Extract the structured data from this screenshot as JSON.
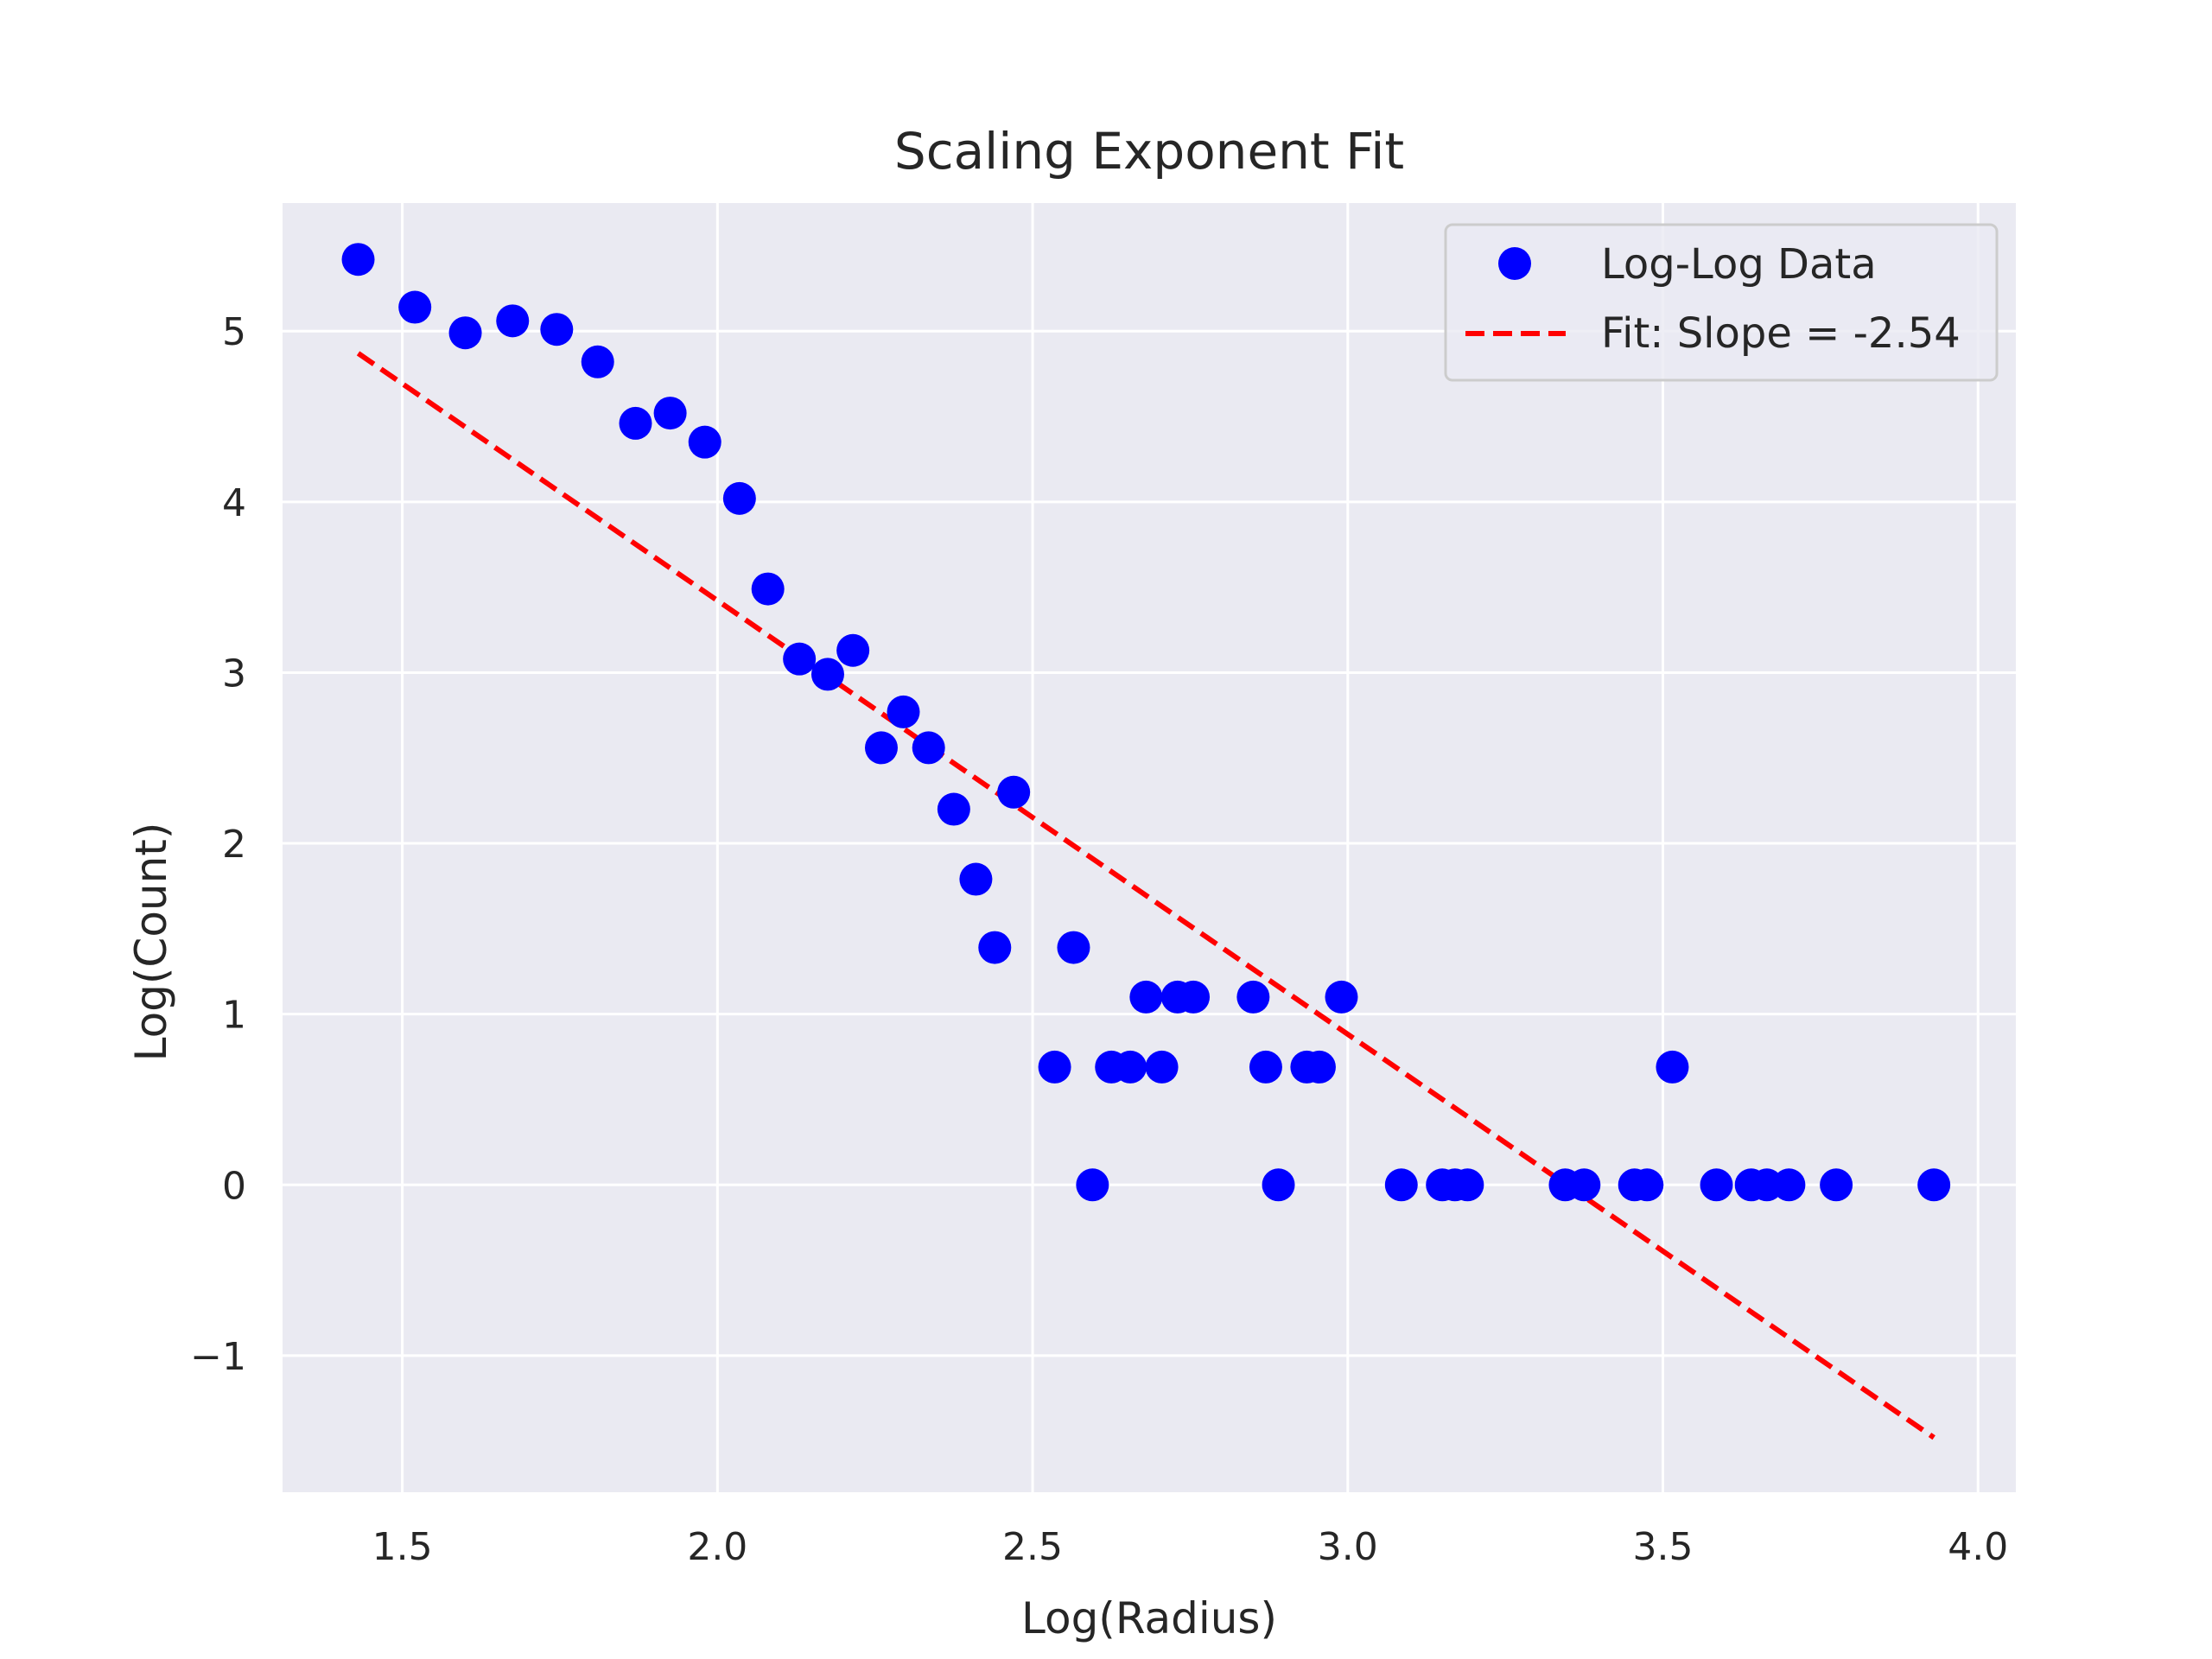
{
  "chart_data": {
    "type": "scatter",
    "title": "Scaling Exponent Fit",
    "xlabel": "Log(Radius)",
    "ylabel": "Log(Count)",
    "xlim": [
      1.31,
      4.06
    ],
    "ylim": [
      -1.8,
      5.75
    ],
    "xticks": [
      1.5,
      2.0,
      2.5,
      3.0,
      3.5,
      4.0
    ],
    "xtick_labels": [
      "1.5",
      "2.0",
      "2.5",
      "3.0",
      "3.5",
      "4.0"
    ],
    "yticks": [
      -1,
      0,
      1,
      2,
      3,
      4,
      5
    ],
    "ytick_labels": [
      "−1",
      "0",
      "1",
      "2",
      "3",
      "4",
      "5"
    ],
    "grid": true,
    "legend_position": "top-right",
    "colors": {
      "background": "#eaeaf2",
      "grid": "#ffffff",
      "points": "#0000ff",
      "fit_line": "#ff0000"
    },
    "series": [
      {
        "name": "Log-Log Data",
        "kind": "scatter",
        "color": "#0000ff",
        "points": [
          [
            1.43,
            5.42
          ],
          [
            1.52,
            5.14
          ],
          [
            1.6,
            4.99
          ],
          [
            1.675,
            5.06
          ],
          [
            1.745,
            5.01
          ],
          [
            1.81,
            4.82
          ],
          [
            1.87,
            4.46
          ],
          [
            1.925,
            4.52
          ],
          [
            1.98,
            4.35
          ],
          [
            2.035,
            4.02
          ],
          [
            2.08,
            3.49
          ],
          [
            2.13,
            3.08
          ],
          [
            2.175,
            2.99
          ],
          [
            2.215,
            3.13
          ],
          [
            2.26,
            2.56
          ],
          [
            2.295,
            2.77
          ],
          [
            2.335,
            2.56
          ],
          [
            2.375,
            2.2
          ],
          [
            2.41,
            1.79
          ],
          [
            2.44,
            1.39
          ],
          [
            2.47,
            2.3
          ],
          [
            2.535,
            0.69
          ],
          [
            2.565,
            1.39
          ],
          [
            2.595,
            0.0
          ],
          [
            2.625,
            0.69
          ],
          [
            2.655,
            0.69
          ],
          [
            2.68,
            1.1
          ],
          [
            2.705,
            0.69
          ],
          [
            2.73,
            1.1
          ],
          [
            2.755,
            1.1
          ],
          [
            2.85,
            1.1
          ],
          [
            2.87,
            0.69
          ],
          [
            2.89,
            0.0
          ],
          [
            2.935,
            0.69
          ],
          [
            2.955,
            0.69
          ],
          [
            2.99,
            1.1
          ],
          [
            3.085,
            0.0
          ],
          [
            3.15,
            0.0
          ],
          [
            3.17,
            0.0
          ],
          [
            3.19,
            0.0
          ],
          [
            3.345,
            0.0
          ],
          [
            3.375,
            0.0
          ],
          [
            3.455,
            0.0
          ],
          [
            3.475,
            0.0
          ],
          [
            3.515,
            0.69
          ],
          [
            3.585,
            0.0
          ],
          [
            3.64,
            0.0
          ],
          [
            3.665,
            0.0
          ],
          [
            3.7,
            0.0
          ],
          [
            3.775,
            0.0
          ],
          [
            3.93,
            0.0
          ]
        ]
      },
      {
        "name": "Fit: Slope = -2.54",
        "kind": "line",
        "style": "dashed",
        "color": "#ff0000",
        "points": [
          [
            1.43,
            4.87
          ],
          [
            3.93,
            -1.48
          ]
        ]
      }
    ]
  }
}
